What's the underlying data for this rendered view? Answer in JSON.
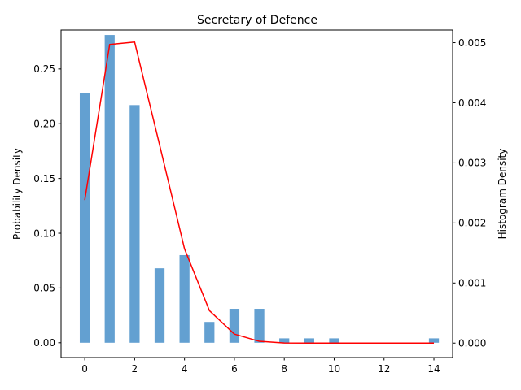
{
  "chart_data": {
    "type": "bar",
    "title": "Secretary of Defence",
    "xlabel": "",
    "ylabel": "Probability Density",
    "y2label": "Histogram Density",
    "x": [
      0,
      1,
      2,
      3,
      4,
      5,
      6,
      7,
      8,
      9,
      10,
      11,
      12,
      13,
      14
    ],
    "xlim": [
      -0.95,
      14.75
    ],
    "xticks": [
      0,
      2,
      4,
      6,
      8,
      10,
      12,
      14
    ],
    "ylim": [
      -0.0135,
      0.2855
    ],
    "yticks": [
      0.0,
      0.05,
      0.1,
      0.15,
      0.2,
      0.25
    ],
    "ytick_labels": [
      "0.00",
      "0.05",
      "0.10",
      "0.15",
      "0.20",
      "0.25"
    ],
    "y2lim": [
      -0.00024,
      0.00521
    ],
    "y2ticks": [
      0.0,
      0.001,
      0.002,
      0.003,
      0.004,
      0.005
    ],
    "y2tick_labels": [
      "0.000",
      "0.001",
      "0.002",
      "0.003",
      "0.004",
      "0.005"
    ],
    "bars": {
      "axis": "left",
      "color": "#5b9bcf",
      "width": 0.4,
      "values": [
        0.228,
        0.281,
        0.217,
        0.068,
        0.08,
        0.019,
        0.031,
        0.031,
        0.004,
        0.004,
        0.004,
        0,
        0,
        0,
        0.004
      ]
    },
    "line": {
      "axis": "right",
      "color": "#ff0000",
      "values": [
        0.00238,
        0.00497,
        0.00501,
        0.0033,
        0.00157,
        0.00054,
        0.00015,
        3e-05,
        2e-06,
        0,
        0,
        0,
        0,
        0,
        0
      ]
    },
    "grid": false
  }
}
